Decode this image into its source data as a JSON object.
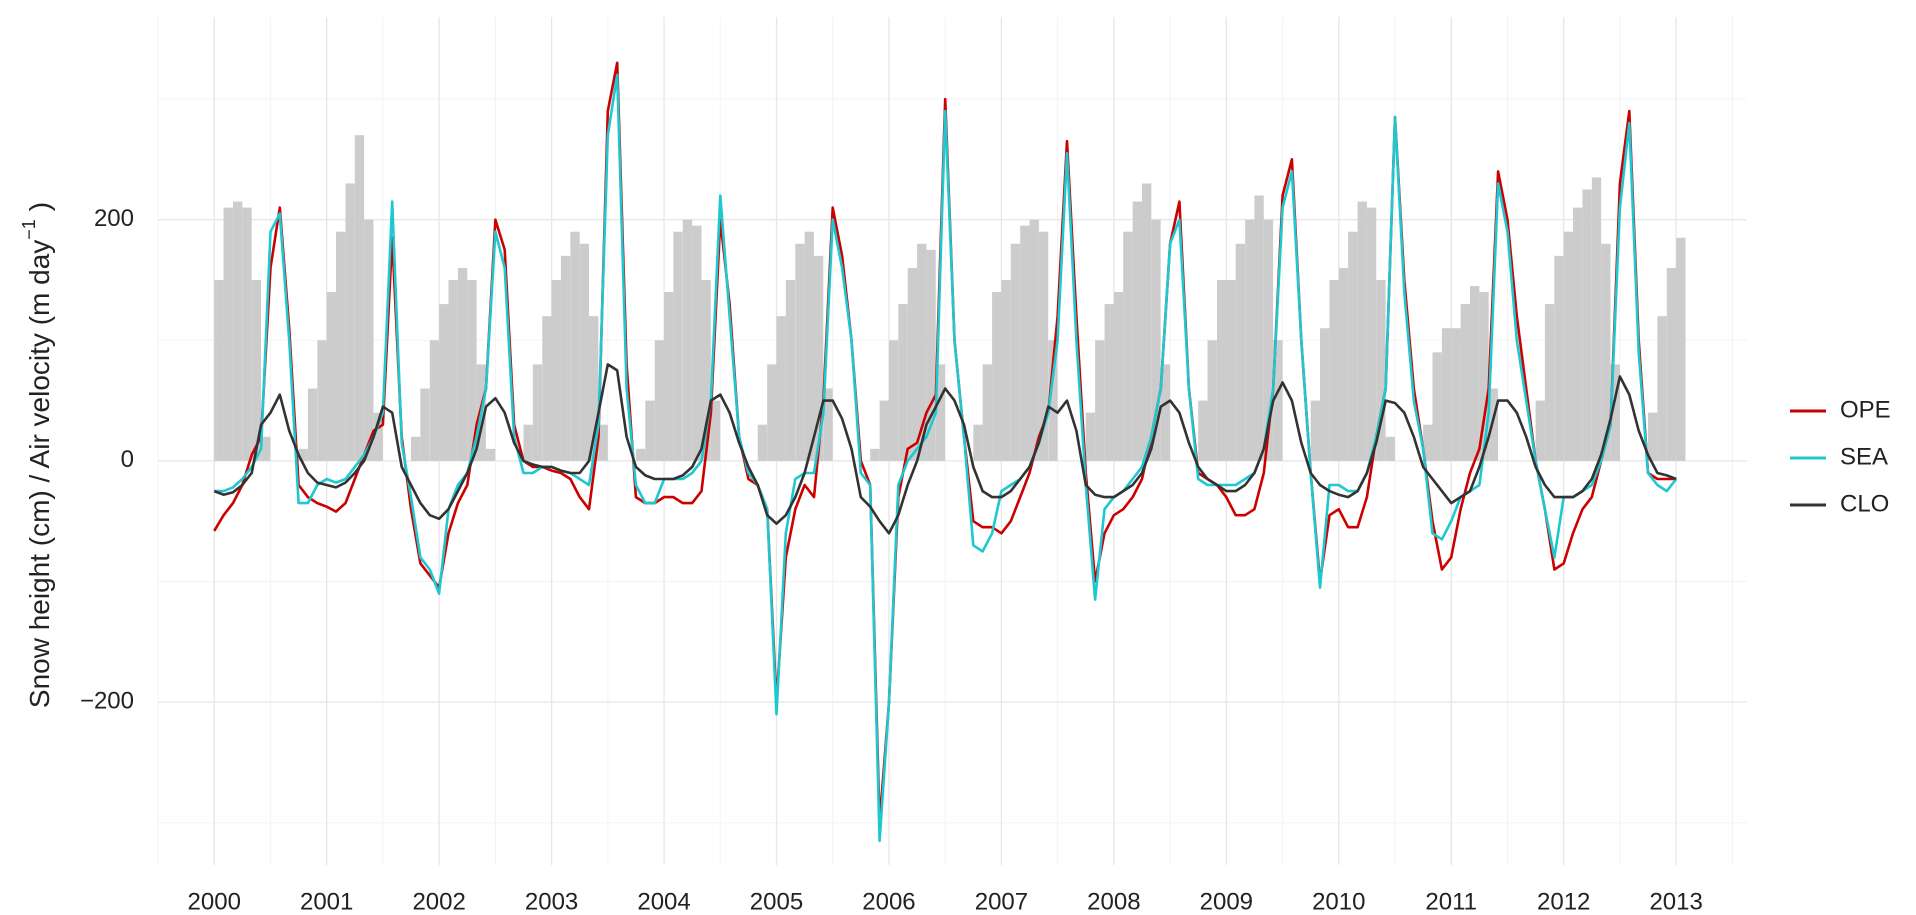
{
  "chart_data": {
    "type": "line",
    "y_label": "Snow height (cm) / Air velocity (m day",
    "y_label_sup": "−1",
    "y_label_end": ")",
    "x": [
      2000,
      2000.083,
      2000.167,
      2000.25,
      2000.333,
      2000.417,
      2000.5,
      2000.583,
      2000.667,
      2000.75,
      2000.833,
      2000.917,
      2001,
      2001.083,
      2001.167,
      2001.25,
      2001.333,
      2001.417,
      2001.5,
      2001.583,
      2001.667,
      2001.75,
      2001.833,
      2001.917,
      2002,
      2002.083,
      2002.167,
      2002.25,
      2002.333,
      2002.417,
      2002.5,
      2002.583,
      2002.667,
      2002.75,
      2002.833,
      2002.917,
      2003,
      2003.083,
      2003.167,
      2003.25,
      2003.333,
      2003.417,
      2003.5,
      2003.583,
      2003.667,
      2003.75,
      2003.833,
      2003.917,
      2004,
      2004.083,
      2004.167,
      2004.25,
      2004.333,
      2004.417,
      2004.5,
      2004.583,
      2004.667,
      2004.75,
      2004.833,
      2004.917,
      2005,
      2005.083,
      2005.167,
      2005.25,
      2005.333,
      2005.417,
      2005.5,
      2005.583,
      2005.667,
      2005.75,
      2005.833,
      2005.917,
      2006,
      2006.083,
      2006.167,
      2006.25,
      2006.333,
      2006.417,
      2006.5,
      2006.583,
      2006.667,
      2006.75,
      2006.833,
      2006.917,
      2007,
      2007.083,
      2007.167,
      2007.25,
      2007.333,
      2007.417,
      2007.5,
      2007.583,
      2007.667,
      2007.75,
      2007.833,
      2007.917,
      2008,
      2008.083,
      2008.167,
      2008.25,
      2008.333,
      2008.417,
      2008.5,
      2008.583,
      2008.667,
      2008.75,
      2008.833,
      2008.917,
      2009,
      2009.083,
      2009.167,
      2009.25,
      2009.333,
      2009.417,
      2009.5,
      2009.583,
      2009.667,
      2009.75,
      2009.833,
      2009.917,
      2010,
      2010.083,
      2010.167,
      2010.25,
      2010.333,
      2010.417,
      2010.5,
      2010.583,
      2010.667,
      2010.75,
      2010.833,
      2010.917,
      2011,
      2011.083,
      2011.167,
      2011.25,
      2011.333,
      2011.417,
      2011.5,
      2011.583,
      2011.667,
      2011.75,
      2011.833,
      2011.917,
      2012,
      2012.083,
      2012.167,
      2012.25,
      2012.333,
      2012.417,
      2012.5,
      2012.583,
      2012.667,
      2012.75,
      2012.833,
      2012.917,
      2013
    ],
    "snow": {
      "color": "#cccccc",
      "values": [
        150,
        210,
        215,
        210,
        150,
        20,
        0,
        0,
        0,
        10,
        60,
        100,
        140,
        190,
        230,
        270,
        200,
        40,
        0,
        0,
        0,
        20,
        60,
        100,
        130,
        150,
        160,
        150,
        80,
        10,
        0,
        0,
        0,
        30,
        80,
        120,
        150,
        170,
        190,
        180,
        120,
        30,
        0,
        0,
        0,
        10,
        50,
        100,
        140,
        190,
        200,
        195,
        150,
        50,
        0,
        0,
        0,
        0,
        30,
        80,
        120,
        150,
        180,
        190,
        170,
        60,
        0,
        0,
        0,
        0,
        10,
        50,
        100,
        130,
        160,
        180,
        175,
        80,
        0,
        0,
        0,
        30,
        80,
        140,
        150,
        180,
        195,
        200,
        190,
        100,
        0,
        0,
        0,
        40,
        100,
        130,
        140,
        190,
        215,
        230,
        200,
        80,
        0,
        0,
        0,
        50,
        100,
        150,
        150,
        180,
        200,
        220,
        200,
        100,
        0,
        0,
        0,
        50,
        110,
        150,
        160,
        190,
        215,
        210,
        150,
        20,
        0,
        0,
        0,
        30,
        90,
        110,
        110,
        130,
        145,
        140,
        60,
        0,
        0,
        0,
        0,
        50,
        130,
        170,
        190,
        210,
        225,
        235,
        180,
        80,
        0,
        0,
        0,
        40,
        120,
        160,
        185
      ]
    },
    "series": [
      {
        "name": "OPE",
        "color": "#cc0000",
        "values": [
          -58,
          -45,
          -35,
          -20,
          5,
          20,
          160,
          210,
          110,
          -20,
          -30,
          -35,
          -38,
          -42,
          -35,
          -15,
          5,
          25,
          30,
          185,
          20,
          -40,
          -85,
          -95,
          -105,
          -60,
          -35,
          -20,
          30,
          60,
          200,
          175,
          30,
          0,
          -5,
          -5,
          -8,
          -10,
          -15,
          -30,
          -40,
          20,
          290,
          330,
          80,
          -30,
          -35,
          -35,
          -30,
          -30,
          -35,
          -35,
          -25,
          40,
          200,
          130,
          20,
          -15,
          -20,
          -40,
          -200,
          -80,
          -40,
          -20,
          -30,
          50,
          210,
          170,
          100,
          0,
          -20,
          -300,
          -200,
          -30,
          10,
          15,
          40,
          55,
          300,
          100,
          20,
          -50,
          -55,
          -55,
          -60,
          -50,
          -30,
          -10,
          20,
          40,
          120,
          265,
          120,
          -10,
          -100,
          -60,
          -45,
          -40,
          -30,
          -15,
          20,
          60,
          180,
          215,
          60,
          -10,
          -15,
          -20,
          -30,
          -45,
          -45,
          -40,
          -10,
          60,
          220,
          250,
          100,
          -10,
          -100,
          -45,
          -40,
          -55,
          -55,
          -30,
          20,
          60,
          285,
          150,
          60,
          10,
          -50,
          -90,
          -80,
          -40,
          -10,
          10,
          60,
          240,
          200,
          120,
          60,
          0,
          -40,
          -90,
          -85,
          -60,
          -40,
          -30,
          0,
          30,
          230,
          290,
          100,
          -10,
          -15,
          -15,
          -15
        ]
      },
      {
        "name": "SEA",
        "color": "#1ec8d0",
        "values": [
          -25,
          -25,
          -22,
          -15,
          -5,
          10,
          190,
          205,
          100,
          -35,
          -35,
          -20,
          -15,
          -18,
          -15,
          -5,
          5,
          20,
          40,
          215,
          15,
          -30,
          -80,
          -90,
          -110,
          -40,
          -20,
          -10,
          20,
          60,
          190,
          160,
          20,
          -10,
          -10,
          -5,
          -5,
          -8,
          -10,
          -15,
          -20,
          30,
          270,
          320,
          60,
          -20,
          -35,
          -35,
          -15,
          -15,
          -15,
          -10,
          0,
          50,
          220,
          120,
          20,
          -10,
          -20,
          -40,
          -210,
          -60,
          -15,
          -10,
          -10,
          40,
          200,
          160,
          100,
          -10,
          -20,
          -315,
          -200,
          -20,
          0,
          10,
          20,
          40,
          290,
          100,
          20,
          -70,
          -75,
          -60,
          -25,
          -20,
          -15,
          -5,
          15,
          40,
          100,
          255,
          100,
          -20,
          -115,
          -40,
          -30,
          -25,
          -15,
          -5,
          20,
          60,
          180,
          200,
          60,
          -15,
          -20,
          -20,
          -20,
          -20,
          -15,
          -10,
          10,
          60,
          210,
          240,
          100,
          -10,
          -105,
          -20,
          -20,
          -25,
          -25,
          -10,
          20,
          60,
          285,
          140,
          50,
          10,
          -60,
          -65,
          -50,
          -30,
          -25,
          -20,
          40,
          230,
          190,
          100,
          50,
          0,
          -40,
          -80,
          -30,
          -30,
          -25,
          -20,
          0,
          30,
          210,
          280,
          90,
          -10,
          -20,
          -25,
          -15
        ]
      },
      {
        "name": "CLO",
        "color": "#333333",
        "values": [
          -25,
          -28,
          -26,
          -20,
          -10,
          30,
          40,
          55,
          25,
          5,
          -10,
          -18,
          -20,
          -22,
          -18,
          -10,
          0,
          20,
          45,
          40,
          -5,
          -20,
          -35,
          -45,
          -48,
          -40,
          -25,
          -10,
          10,
          45,
          52,
          40,
          15,
          0,
          -3,
          -5,
          -5,
          -8,
          -10,
          -10,
          0,
          40,
          80,
          75,
          20,
          -5,
          -12,
          -15,
          -15,
          -15,
          -12,
          -5,
          10,
          50,
          55,
          40,
          15,
          -5,
          -20,
          -45,
          -52,
          -45,
          -30,
          -10,
          20,
          50,
          50,
          35,
          10,
          -30,
          -38,
          -50,
          -60,
          -45,
          -20,
          0,
          30,
          45,
          60,
          50,
          30,
          -5,
          -25,
          -30,
          -30,
          -25,
          -15,
          -5,
          15,
          45,
          40,
          50,
          25,
          -20,
          -28,
          -30,
          -30,
          -25,
          -20,
          -10,
          10,
          45,
          50,
          40,
          15,
          -5,
          -15,
          -20,
          -25,
          -25,
          -20,
          -10,
          10,
          50,
          65,
          50,
          15,
          -10,
          -20,
          -25,
          -28,
          -30,
          -25,
          -10,
          15,
          50,
          48,
          40,
          20,
          -5,
          -15,
          -25,
          -35,
          -30,
          -25,
          -5,
          20,
          50,
          50,
          40,
          20,
          -5,
          -20,
          -30,
          -30,
          -30,
          -25,
          -15,
          5,
          35,
          70,
          55,
          25,
          5,
          -10,
          -12,
          -15
        ]
      }
    ],
    "xlim": [
      1999.5,
      2013.63
    ],
    "xticks": [
      2000,
      2001,
      2002,
      2003,
      2004,
      2005,
      2006,
      2007,
      2008,
      2009,
      2010,
      2011,
      2012,
      2013
    ],
    "x_minor_ticks": [
      1999.5,
      2000.5,
      2001.5,
      2002.5,
      2003.5,
      2004.5,
      2005.5,
      2006.5,
      2007.5,
      2008.5,
      2009.5,
      2010.5,
      2011.5,
      2012.5,
      2013.5
    ],
    "ylim": [
      -335,
      368
    ],
    "yticks": [
      {
        "value": -200,
        "label": "−200"
      },
      0,
      200
    ],
    "y_minor_ticks": [
      -300,
      -100,
      100,
      300
    ],
    "grid": true,
    "legend": "right"
  }
}
